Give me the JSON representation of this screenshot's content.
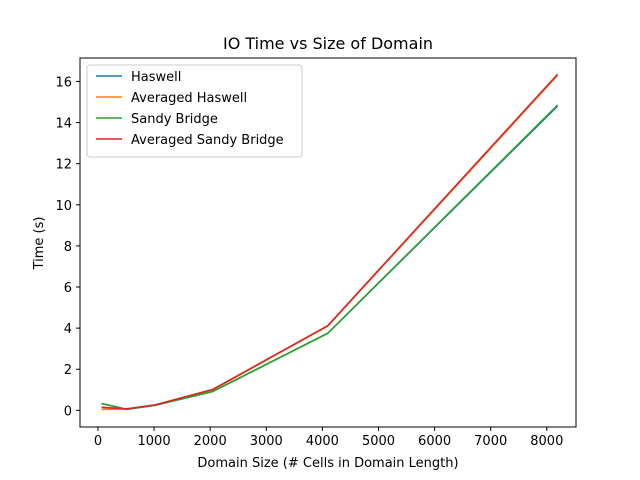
{
  "chart_data": {
    "type": "line",
    "title": "IO Time vs Size of Domain",
    "xlabel": "Domain Size (# Cells in Domain Length)",
    "ylabel": "Time (s)",
    "xlim": [
      -320,
      8520
    ],
    "ylim": [
      -0.81,
      17.14
    ],
    "xticks": [
      0,
      1000,
      2000,
      3000,
      4000,
      5000,
      6000,
      7000,
      8000
    ],
    "yticks": [
      0,
      2,
      4,
      6,
      8,
      10,
      12,
      14,
      16
    ],
    "grid": false,
    "legend_position": "top-left",
    "x": [
      64,
      512,
      1024,
      2048,
      4096,
      8192
    ],
    "series": [
      {
        "name": "Haswell",
        "color": "#1f77b4",
        "values": [
          0.33,
          0.05,
          0.25,
          0.92,
          3.75,
          14.8
        ]
      },
      {
        "name": "Averaged Haswell",
        "color": "#ff7f0e",
        "values": [
          0.05,
          0.07,
          0.25,
          1.0,
          4.1,
          16.3
        ]
      },
      {
        "name": "Sandy Bridge",
        "color": "#2ca02c",
        "values": [
          0.33,
          0.05,
          0.25,
          0.92,
          3.75,
          14.85
        ]
      },
      {
        "name": "Averaged Sandy Bridge",
        "color": "#d62728",
        "values": [
          0.15,
          0.07,
          0.27,
          1.02,
          4.12,
          16.35
        ]
      }
    ]
  }
}
